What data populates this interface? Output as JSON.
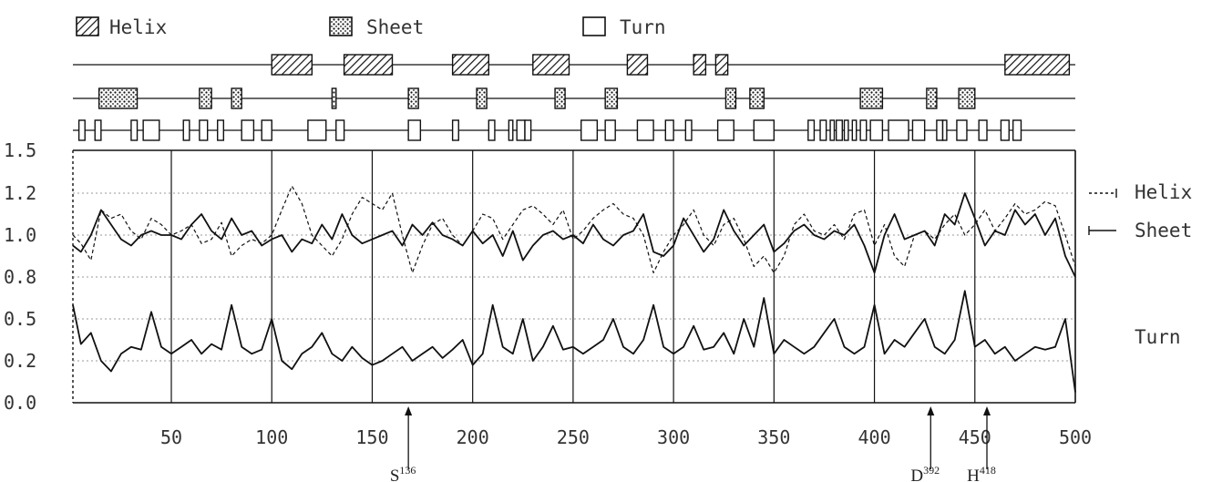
{
  "legend": {
    "helix": "Helix",
    "sheet": "Sheet",
    "turn": "Turn"
  },
  "right_labels": {
    "helix": "Helix",
    "sheet": "Sheet",
    "turn": "Turn"
  },
  "site_markers": [
    {
      "residue": 136,
      "letter": "S",
      "sup": "136",
      "x_pos": 168
    },
    {
      "residue": 392,
      "letter": "D",
      "sup": "392",
      "x_pos": 428
    },
    {
      "residue": 418,
      "letter": "H",
      "sup": "418",
      "x_pos": 456
    }
  ],
  "colors": {
    "ink": "#111111",
    "grid": "#999999"
  },
  "chart_data": {
    "type": "line",
    "title": "",
    "xlabel": "",
    "ylabel": "",
    "xlim": [
      1,
      500
    ],
    "ylim": [
      0.0,
      1.5
    ],
    "x_ticks": [
      50,
      100,
      150,
      200,
      250,
      300,
      350,
      400,
      450,
      500
    ],
    "x_tick_labels": [
      "50",
      "100",
      "150",
      "200",
      "250",
      "300",
      "350",
      "400",
      "450",
      "500"
    ],
    "y_ticks": [
      0.0,
      0.2,
      0.5,
      0.8,
      1.0,
      1.2,
      1.5
    ],
    "y_tick_labels": [
      "0.0",
      "0.2",
      "0.5",
      "0.8",
      "1.0",
      "1.2",
      "1.5"
    ],
    "dotted_gridlines_y": [
      0.2,
      0.5,
      0.8,
      1.0,
      1.2
    ],
    "vertical_gridlines_x": [
      50,
      100,
      150,
      200,
      250,
      300,
      350,
      400,
      450
    ],
    "series": [
      {
        "name": "Helix",
        "style": "dashed",
        "x": [
          1,
          5,
          10,
          15,
          20,
          25,
          30,
          35,
          40,
          45,
          50,
          55,
          60,
          65,
          70,
          75,
          80,
          85,
          90,
          95,
          100,
          105,
          110,
          115,
          120,
          125,
          130,
          135,
          140,
          145,
          150,
          155,
          160,
          165,
          170,
          175,
          180,
          185,
          190,
          195,
          200,
          205,
          210,
          215,
          220,
          225,
          230,
          235,
          240,
          245,
          250,
          255,
          260,
          265,
          270,
          275,
          280,
          285,
          290,
          295,
          300,
          305,
          310,
          315,
          320,
          325,
          330,
          335,
          340,
          345,
          350,
          355,
          360,
          365,
          370,
          375,
          380,
          385,
          390,
          395,
          400,
          405,
          410,
          415,
          420,
          425,
          430,
          435,
          440,
          445,
          450,
          455,
          460,
          465,
          470,
          475,
          480,
          485,
          490,
          495,
          500
        ],
        "y": [
          1.0,
          0.96,
          0.88,
          1.12,
          1.08,
          1.1,
          1.02,
          0.98,
          1.08,
          1.05,
          1.0,
          1.02,
          1.05,
          0.96,
          0.98,
          1.06,
          0.9,
          0.95,
          0.98,
          0.96,
          1.0,
          1.12,
          1.25,
          1.15,
          1.0,
          0.95,
          0.9,
          0.98,
          1.1,
          1.18,
          1.15,
          1.12,
          1.2,
          1.0,
          0.82,
          0.95,
          1.05,
          1.08,
          1.0,
          0.95,
          1.02,
          1.1,
          1.08,
          0.98,
          1.05,
          1.12,
          1.14,
          1.1,
          1.05,
          1.12,
          0.98,
          1.02,
          1.08,
          1.12,
          1.15,
          1.1,
          1.08,
          1.0,
          0.82,
          0.92,
          1.0,
          1.05,
          1.12,
          1.0,
          0.95,
          1.05,
          1.08,
          0.98,
          0.85,
          0.9,
          0.82,
          0.9,
          1.05,
          1.1,
          1.02,
          1.0,
          1.05,
          0.98,
          1.1,
          1.12,
          0.95,
          1.05,
          0.9,
          0.85,
          1.0,
          1.02,
          0.98,
          1.05,
          1.1,
          1.0,
          1.05,
          1.12,
          1.02,
          1.08,
          1.15,
          1.1,
          1.12,
          1.16,
          1.14,
          1.0,
          0.85
        ]
      },
      {
        "name": "Sheet",
        "style": "solid",
        "x": [
          1,
          5,
          10,
          15,
          20,
          25,
          30,
          35,
          40,
          45,
          50,
          55,
          60,
          65,
          70,
          75,
          80,
          85,
          90,
          95,
          100,
          105,
          110,
          115,
          120,
          125,
          130,
          135,
          140,
          145,
          150,
          155,
          160,
          165,
          170,
          175,
          180,
          185,
          190,
          195,
          200,
          205,
          210,
          215,
          220,
          225,
          230,
          235,
          240,
          245,
          250,
          255,
          260,
          265,
          270,
          275,
          280,
          285,
          290,
          295,
          300,
          305,
          310,
          315,
          320,
          325,
          330,
          335,
          340,
          345,
          350,
          355,
          360,
          365,
          370,
          375,
          380,
          385,
          390,
          395,
          400,
          405,
          410,
          415,
          420,
          425,
          430,
          435,
          440,
          445,
          450,
          455,
          460,
          465,
          470,
          475,
          480,
          485,
          490,
          495,
          500
        ],
        "y": [
          0.95,
          0.92,
          1.0,
          1.12,
          1.05,
          0.98,
          0.95,
          1.0,
          1.02,
          1.0,
          1.0,
          0.98,
          1.05,
          1.1,
          1.02,
          0.98,
          1.08,
          1.0,
          1.02,
          0.95,
          0.98,
          1.0,
          0.92,
          0.98,
          0.96,
          1.05,
          0.98,
          1.1,
          1.0,
          0.96,
          0.98,
          1.0,
          1.02,
          0.95,
          1.05,
          1.0,
          1.06,
          1.0,
          0.98,
          0.95,
          1.02,
          0.96,
          1.0,
          0.9,
          1.02,
          0.88,
          0.95,
          1.0,
          1.02,
          0.98,
          1.0,
          0.96,
          1.05,
          0.98,
          0.95,
          1.0,
          1.02,
          1.1,
          0.92,
          0.9,
          0.95,
          1.08,
          1.0,
          0.92,
          0.98,
          1.12,
          1.02,
          0.95,
          1.0,
          1.05,
          0.92,
          0.96,
          1.02,
          1.05,
          1.0,
          0.98,
          1.02,
          1.0,
          1.05,
          0.95,
          0.82,
          1.0,
          1.1,
          0.98,
          1.0,
          1.02,
          0.95,
          1.1,
          1.05,
          1.2,
          1.08,
          0.95,
          1.02,
          1.0,
          1.12,
          1.05,
          1.1,
          1.0,
          1.08,
          0.9,
          0.8
        ]
      },
      {
        "name": "Turn",
        "style": "solid",
        "x": [
          1,
          5,
          10,
          15,
          20,
          25,
          30,
          35,
          40,
          45,
          50,
          55,
          60,
          65,
          70,
          75,
          80,
          85,
          90,
          95,
          100,
          105,
          110,
          115,
          120,
          125,
          130,
          135,
          140,
          145,
          150,
          155,
          160,
          165,
          170,
          175,
          180,
          185,
          190,
          195,
          200,
          205,
          210,
          215,
          220,
          225,
          230,
          235,
          240,
          245,
          250,
          255,
          260,
          265,
          270,
          275,
          280,
          285,
          290,
          295,
          300,
          305,
          310,
          315,
          320,
          325,
          330,
          335,
          340,
          345,
          350,
          355,
          360,
          365,
          370,
          375,
          380,
          385,
          390,
          395,
          400,
          405,
          410,
          415,
          420,
          425,
          430,
          435,
          440,
          445,
          450,
          455,
          460,
          465,
          470,
          475,
          480,
          485,
          490,
          495,
          500
        ],
        "y": [
          0.6,
          0.32,
          0.4,
          0.2,
          0.15,
          0.25,
          0.3,
          0.28,
          0.55,
          0.3,
          0.25,
          0.3,
          0.35,
          0.25,
          0.32,
          0.28,
          0.6,
          0.3,
          0.25,
          0.28,
          0.5,
          0.2,
          0.16,
          0.25,
          0.3,
          0.4,
          0.25,
          0.2,
          0.3,
          0.22,
          0.18,
          0.2,
          0.25,
          0.3,
          0.2,
          0.25,
          0.3,
          0.22,
          0.28,
          0.35,
          0.18,
          0.25,
          0.6,
          0.3,
          0.25,
          0.5,
          0.2,
          0.3,
          0.45,
          0.28,
          0.3,
          0.25,
          0.3,
          0.35,
          0.5,
          0.3,
          0.25,
          0.35,
          0.6,
          0.3,
          0.25,
          0.3,
          0.45,
          0.28,
          0.3,
          0.4,
          0.25,
          0.5,
          0.3,
          0.65,
          0.25,
          0.35,
          0.3,
          0.25,
          0.3,
          0.4,
          0.5,
          0.3,
          0.25,
          0.3,
          0.6,
          0.25,
          0.35,
          0.3,
          0.4,
          0.5,
          0.3,
          0.25,
          0.35,
          0.7,
          0.3,
          0.35,
          0.25,
          0.3,
          0.2,
          0.25,
          0.3,
          0.28,
          0.3,
          0.5,
          0.05
        ]
      }
    ],
    "structure_tracks": {
      "legend_order": [
        "Helix",
        "Sheet",
        "Turn"
      ],
      "helix_segments": [
        [
          100,
          120
        ],
        [
          136,
          160
        ],
        [
          190,
          208
        ],
        [
          230,
          248
        ],
        [
          277,
          287
        ],
        [
          310,
          316
        ],
        [
          321,
          327
        ],
        [
          465,
          497
        ]
      ],
      "sheet_segments": [
        [
          14,
          33
        ],
        [
          64,
          70
        ],
        [
          80,
          85
        ],
        [
          130,
          132
        ],
        [
          168,
          173
        ],
        [
          202,
          207
        ],
        [
          241,
          246
        ],
        [
          266,
          272
        ],
        [
          326,
          331
        ],
        [
          338,
          345
        ],
        [
          393,
          404
        ],
        [
          426,
          431
        ],
        [
          442,
          450
        ]
      ],
      "turn_segments": [
        [
          4,
          7
        ],
        [
          12,
          15
        ],
        [
          30,
          33
        ],
        [
          36,
          44
        ],
        [
          56,
          59
        ],
        [
          64,
          68
        ],
        [
          73,
          76
        ],
        [
          85,
          91
        ],
        [
          95,
          100
        ],
        [
          118,
          127
        ],
        [
          132,
          136
        ],
        [
          168,
          174
        ],
        [
          190,
          193
        ],
        [
          208,
          211
        ],
        [
          218,
          220
        ],
        [
          222,
          226
        ],
        [
          226,
          229
        ],
        [
          254,
          262
        ],
        [
          266,
          271
        ],
        [
          282,
          290
        ],
        [
          296,
          300
        ],
        [
          306,
          309
        ],
        [
          322,
          330
        ],
        [
          340,
          350
        ],
        [
          367,
          370
        ],
        [
          373,
          376
        ],
        [
          378,
          380
        ],
        [
          381,
          384
        ],
        [
          385,
          387
        ],
        [
          389,
          391
        ],
        [
          393,
          396
        ],
        [
          398,
          404
        ],
        [
          407,
          417
        ],
        [
          419,
          425
        ],
        [
          431,
          434
        ],
        [
          434,
          436
        ],
        [
          441,
          446
        ],
        [
          452,
          456
        ],
        [
          463,
          467
        ],
        [
          469,
          473
        ]
      ]
    }
  }
}
